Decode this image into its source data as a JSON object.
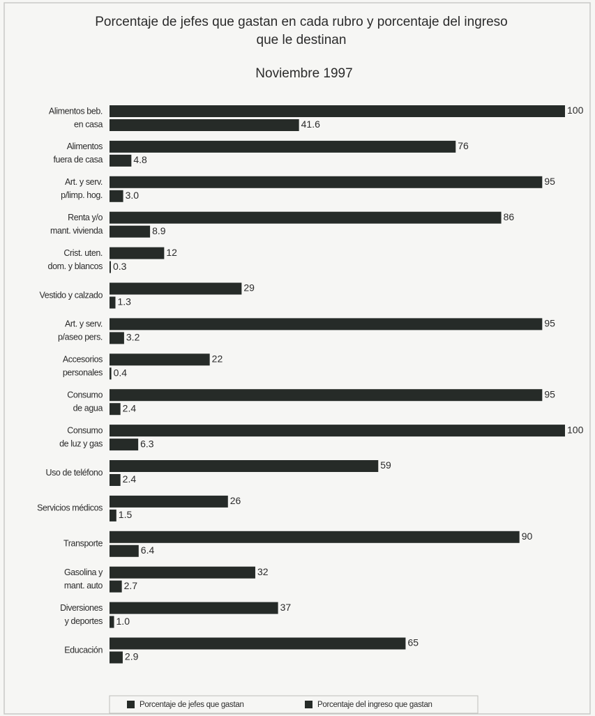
{
  "chart_data": {
    "type": "bar",
    "orientation": "horizontal",
    "title": [
      "Porcentaje de jefes que gastan en cada rubro y porcentaje del ingreso",
      "que le destinan"
    ],
    "subtitle": "Noviembre 1997",
    "categories": [
      [
        "Alimentos beb.",
        "en casa"
      ],
      [
        "Alimentos",
        "fuera de casa"
      ],
      [
        "Art. y serv.",
        "p/limp. hog."
      ],
      [
        "Renta y/o",
        "mant. vivienda"
      ],
      [
        "Crist. uten.",
        "dom. y blancos"
      ],
      [
        "Vestido y calzado"
      ],
      [
        "Art. y serv.",
        "p/aseo pers."
      ],
      [
        "Accesorios",
        "personales"
      ],
      [
        "Consumo",
        "de agua"
      ],
      [
        "Consumo",
        "de luz y gas"
      ],
      [
        "Uso de teléfono"
      ],
      [
        "Servicios médicos"
      ],
      [
        "Transporte"
      ],
      [
        "Gasolina y",
        "mant. auto"
      ],
      [
        "Diversiones",
        "y deportes"
      ],
      [
        "Educación"
      ]
    ],
    "series": [
      {
        "name": "Porcentaje de jefes que gastan",
        "color": "#262b28",
        "values": [
          100,
          76,
          95,
          86,
          12,
          29,
          95,
          22,
          95,
          100,
          59,
          26,
          90,
          32,
          37,
          65
        ]
      },
      {
        "name": "Porcentaje del ingreso que gastan",
        "color": "#262b28",
        "values": [
          41.6,
          4.8,
          3.0,
          8.9,
          0.3,
          1.3,
          3.2,
          0.4,
          2.4,
          6.3,
          2.4,
          1.5,
          6.4,
          2.7,
          1.0,
          2.9
        ],
        "value_labels": [
          "41.6",
          "4.8",
          "3.0",
          "8.9",
          "0.3",
          "1.3",
          "3.2",
          "0.4",
          "2.4",
          "6.3",
          "2.4",
          "1.5",
          "6.4",
          "2.7",
          "1.0",
          "2.9"
        ]
      }
    ],
    "xlim": [
      0,
      100
    ],
    "legend": "bottom"
  }
}
